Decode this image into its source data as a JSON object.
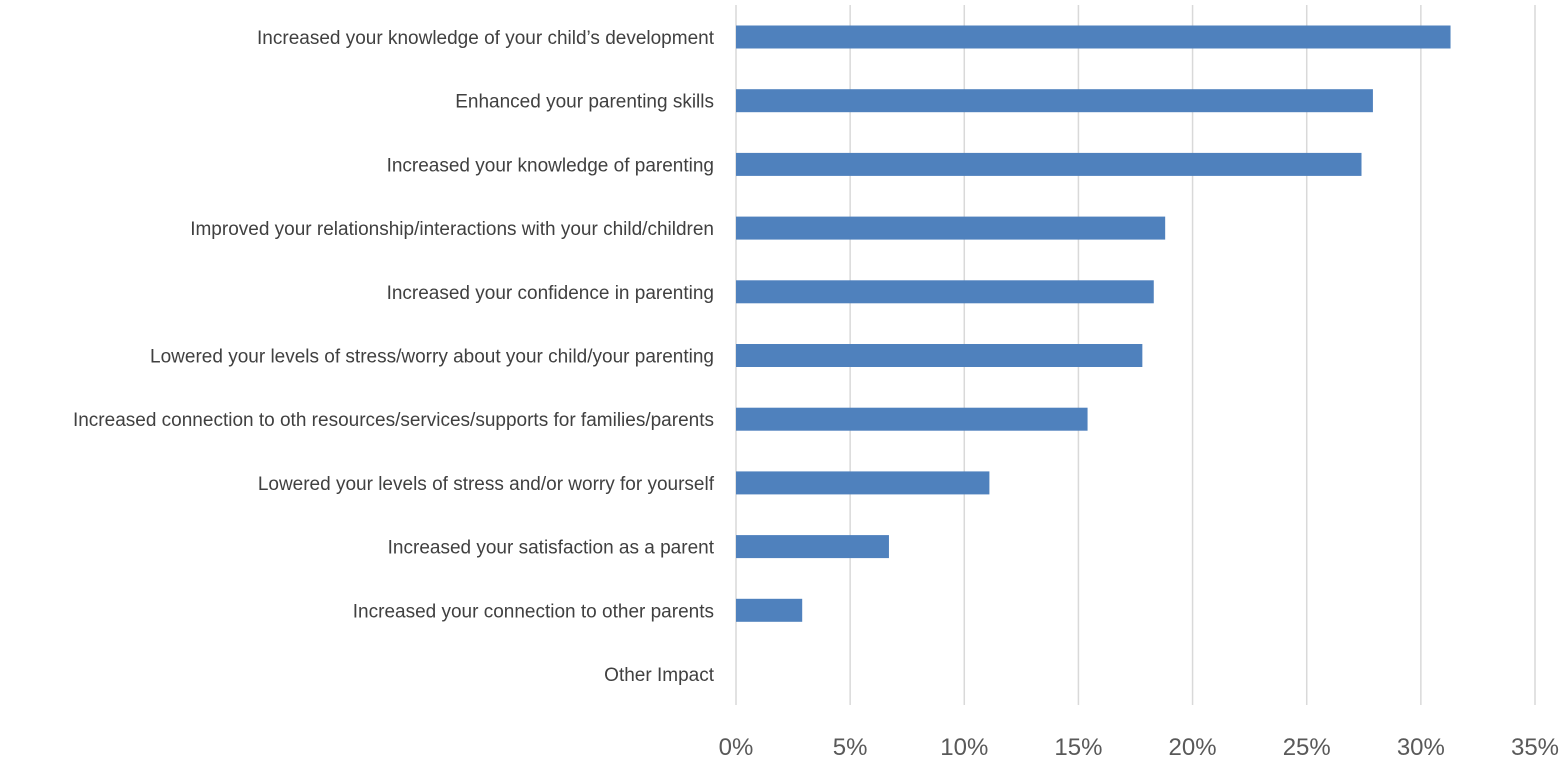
{
  "chart_data": {
    "type": "bar",
    "orientation": "horizontal",
    "categories": [
      "Increased your knowledge of your child’s development",
      "Enhanced your parenting skills",
      "Increased your knowledge of parenting",
      "Improved your relationship/interactions with your child/children",
      "Increased your confidence in parenting",
      "Lowered your levels of stress/worry about your child/your parenting",
      "Increased connection to oth resources/services/supports for families/parents",
      "Lowered your levels of stress and/or worry for yourself",
      "Increased your satisfaction as a parent",
      "Increased your connection to other parents",
      "Other Impact"
    ],
    "values": [
      31.3,
      27.9,
      27.4,
      18.8,
      18.3,
      17.8,
      15.4,
      11.1,
      6.7,
      2.9,
      0
    ],
    "xlim": [
      0,
      35
    ],
    "xticks": [
      0,
      5,
      10,
      15,
      20,
      25,
      30,
      35
    ],
    "tick_suffix": "%",
    "grid": true,
    "bar_color": "#4f81bd",
    "grid_color": "#d9d9d9",
    "title": "",
    "xlabel": "",
    "ylabel": ""
  }
}
